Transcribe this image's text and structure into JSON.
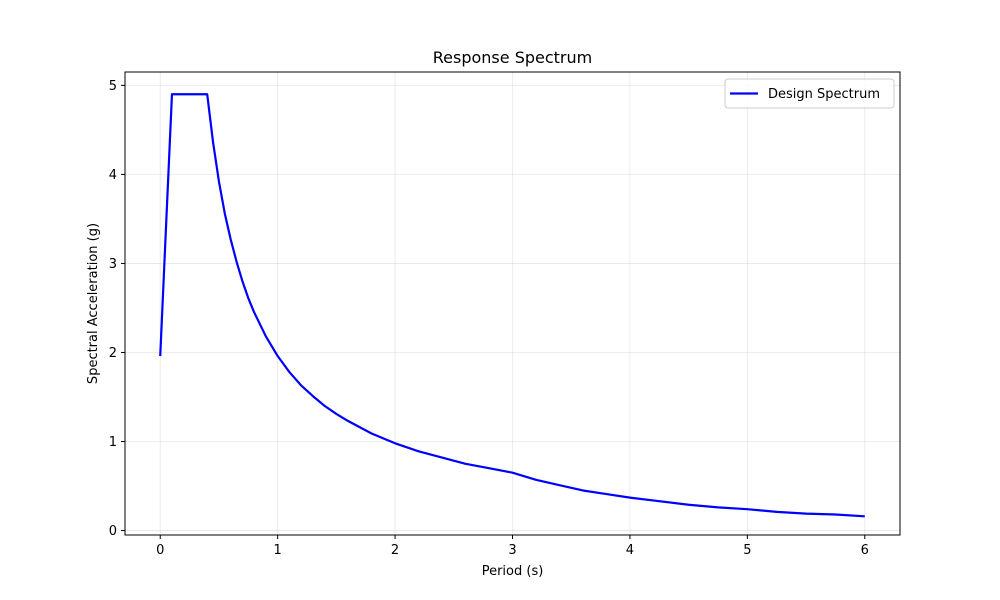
{
  "chart_data": {
    "type": "line",
    "title": "Response Spectrum",
    "xlabel": "Period (s)",
    "ylabel": "Spectral Acceleration (g)",
    "xlim": [
      -0.3,
      6.3
    ],
    "ylim": [
      -0.05,
      5.15
    ],
    "xticks": [
      0,
      1,
      2,
      3,
      4,
      5,
      6
    ],
    "yticks": [
      0,
      1,
      2,
      3,
      4,
      5
    ],
    "grid": true,
    "legend_position": "upper right",
    "series": [
      {
        "name": "Design Spectrum",
        "color": "#0000ff",
        "x": [
          0,
          0.1,
          0.4,
          0.45,
          0.5,
          0.55,
          0.6,
          0.65,
          0.7,
          0.75,
          0.8,
          0.9,
          1.0,
          1.1,
          1.2,
          1.3,
          1.4,
          1.5,
          1.6,
          1.8,
          2.0,
          2.2,
          2.4,
          2.6,
          2.8,
          3.0,
          3.2,
          3.4,
          3.6,
          3.8,
          4.0,
          4.25,
          4.5,
          4.75,
          5.0,
          5.25,
          5.5,
          5.75,
          6.0
        ],
        "y": [
          1.96,
          4.9,
          4.9,
          4.36,
          3.92,
          3.56,
          3.27,
          3.02,
          2.8,
          2.61,
          2.45,
          2.18,
          1.96,
          1.78,
          1.63,
          1.51,
          1.4,
          1.31,
          1.23,
          1.09,
          0.98,
          0.89,
          0.82,
          0.75,
          0.7,
          0.65,
          0.57,
          0.51,
          0.45,
          0.41,
          0.37,
          0.33,
          0.29,
          0.26,
          0.24,
          0.21,
          0.19,
          0.18,
          0.16
        ]
      }
    ]
  }
}
